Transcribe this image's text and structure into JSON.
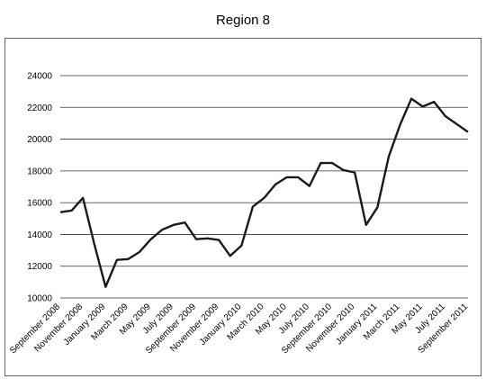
{
  "chart_data": {
    "type": "line",
    "title": "Region 8",
    "xlabel": "",
    "ylabel": "",
    "ylim": [
      10000,
      24000
    ],
    "yticks": [
      10000,
      12000,
      14000,
      16000,
      18000,
      20000,
      22000,
      24000
    ],
    "grid": "horizontal",
    "legend": "none",
    "line_color": "#1a1a1a",
    "x": [
      "September 2008",
      "October 2008",
      "November 2008",
      "December 2008",
      "January 2009",
      "February 2009",
      "March 2009",
      "April 2009",
      "May 2009",
      "June 2009",
      "July 2009",
      "August 2009",
      "September 2009",
      "October 2009",
      "November 2009",
      "December 2009",
      "January 2010",
      "February 2010",
      "March 2010",
      "April 2010",
      "May 2010",
      "June 2010",
      "July 2010",
      "August 2010",
      "September 2010",
      "October 2010",
      "November 2010",
      "December 2010",
      "January 2011",
      "February 2011",
      "March 2011",
      "April 2011",
      "May 2011",
      "June 2011",
      "July 2011",
      "August 2011",
      "September 2011"
    ],
    "xtick_labels": [
      "September 2008",
      "November 2008",
      "January 2009",
      "March 2009",
      "May 2009",
      "July 2009",
      "September 2009",
      "November 2009",
      "January 2010",
      "March 2010",
      "May 2010",
      "July 2010",
      "September 2010",
      "November 2010",
      "January 2011",
      "March 2011",
      "May 2011",
      "July 2011",
      "September 2011"
    ],
    "values": [
      15400,
      15500,
      16300,
      13400,
      10700,
      12400,
      12450,
      12900,
      13700,
      14300,
      14600,
      14750,
      13700,
      13750,
      13650,
      12650,
      13300,
      15750,
      16300,
      17150,
      17600,
      17600,
      17050,
      18500,
      18500,
      18050,
      17900,
      14600,
      15700,
      18900,
      20900,
      22550,
      22050,
      22350,
      21450,
      20950,
      20450
    ]
  }
}
